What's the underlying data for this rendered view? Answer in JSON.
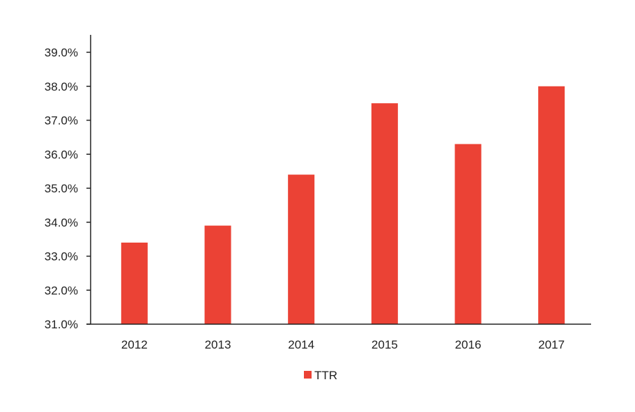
{
  "chart_data": {
    "type": "bar",
    "categories": [
      "2012",
      "2013",
      "2014",
      "2015",
      "2016",
      "2017"
    ],
    "series": [
      {
        "name": "TTR",
        "values": [
          33.4,
          33.9,
          35.4,
          37.5,
          36.3,
          38.0
        ],
        "color": "#EB4235"
      }
    ],
    "ylim": [
      31.0,
      39.0
    ],
    "yticks": [
      "31.0%",
      "32.0%",
      "33.0%",
      "34.0%",
      "35.0%",
      "36.0%",
      "37.0%",
      "38.0%",
      "39.0%"
    ],
    "grid": false,
    "legend": "bottom-center"
  }
}
